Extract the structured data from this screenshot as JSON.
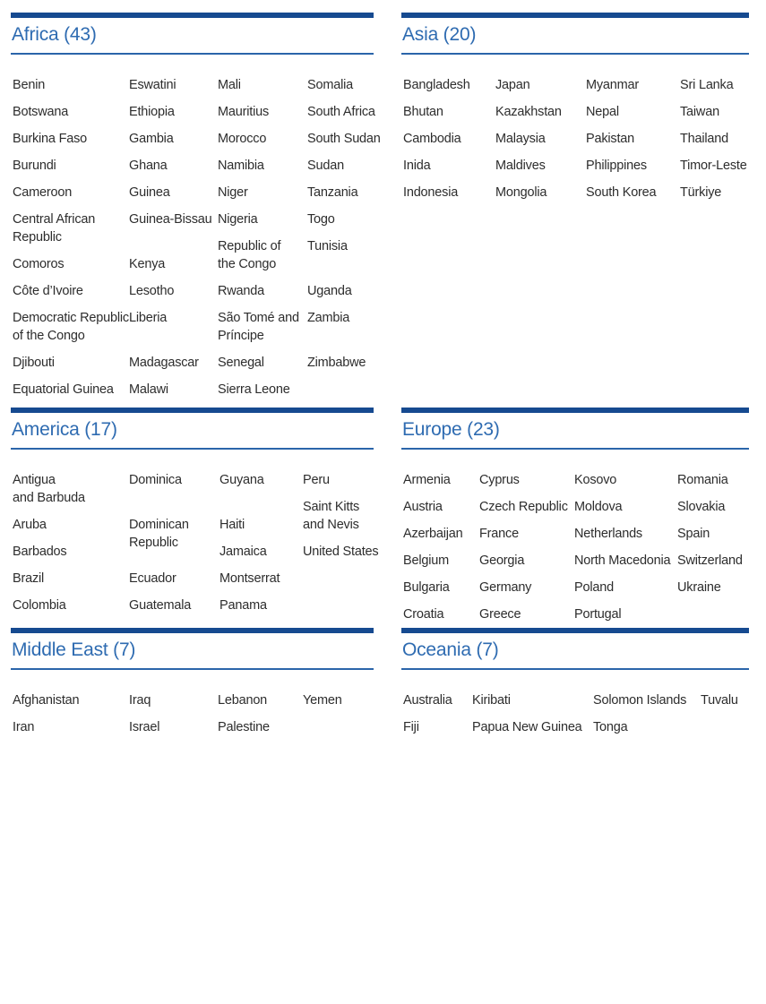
{
  "page": {
    "background": "#ffffff"
  },
  "colors": {
    "section_top_border": "#164a90",
    "section_rule": "#2b65aa",
    "heading_text": "#2e6bb1",
    "country_text": "#2d2d2d"
  },
  "sections": [
    {
      "id": "africa",
      "title": "Africa (43)",
      "columns": [
        [
          "Benin",
          "Botswana",
          "Burkina Faso",
          "Burundi",
          "Cameroon",
          "Central African\nRepublic",
          "Comoros",
          "Côte d’Ivoire",
          "Democratic Republic\nof the Congo",
          "Djibouti",
          "Equatorial Guinea"
        ],
        [
          "Eswatini",
          "Ethiopia",
          "Gambia",
          "Ghana",
          "Guinea",
          "Guinea-Bissau",
          "Kenya",
          "Lesotho",
          "Liberia",
          "Madagascar",
          "Malawi"
        ],
        [
          "Mali",
          "Mauritius",
          "Morocco",
          "Namibia",
          "Niger",
          "Nigeria",
          "Republic of\nthe Congo",
          "Rwanda",
          "São Tomé and\nPríncipe",
          "Senegal",
          "Sierra Leone"
        ],
        [
          "Somalia",
          "South Africa",
          "South Sudan",
          "Sudan",
          "Tanzania",
          "Togo",
          "Tunisia",
          "Uganda",
          "Zambia",
          "Zimbabwe"
        ]
      ]
    },
    {
      "id": "asia",
      "title": "Asia (20)",
      "columns": [
        [
          "Bangladesh",
          "Bhutan",
          "Cambodia",
          "Inida",
          "Indonesia"
        ],
        [
          "Japan",
          "Kazakhstan",
          "Malaysia",
          "Maldives",
          "Mongolia"
        ],
        [
          "Myanmar",
          "Nepal",
          "Pakistan",
          "Philippines",
          "South Korea"
        ],
        [
          "Sri Lanka",
          "Taiwan",
          "Thailand",
          "Timor-Leste",
          "Türkiye"
        ]
      ]
    },
    {
      "id": "america",
      "title": "America (17)",
      "columns": [
        [
          "Antigua\nand Barbuda",
          "Aruba",
          "Barbados",
          "Brazil",
          "Colombia"
        ],
        [
          "Dominica",
          "Dominican\nRepublic",
          "Ecuador",
          "Guatemala"
        ],
        [
          "Guyana",
          "Haiti",
          "Jamaica",
          "Montserrat",
          "Panama"
        ],
        [
          "Peru",
          "Saint Kitts\nand Nevis",
          "United States"
        ]
      ]
    },
    {
      "id": "europe",
      "title": "Europe (23)",
      "columns": [
        [
          "Armenia",
          "Austria",
          "Azerbaijan",
          "Belgium",
          "Bulgaria",
          "Croatia"
        ],
        [
          "Cyprus",
          "Czech Republic",
          "France",
          "Georgia",
          "Germany",
          "Greece"
        ],
        [
          "Kosovo",
          "Moldova",
          "Netherlands",
          "North Macedonia",
          "Poland",
          "Portugal"
        ],
        [
          "Romania",
          "Slovakia",
          "Spain",
          "Switzerland",
          "Ukraine"
        ]
      ]
    },
    {
      "id": "middle_east",
      "title": "Middle East (7)",
      "columns": [
        [
          "Afghanistan",
          "Iran"
        ],
        [
          "Iraq",
          "Israel"
        ],
        [
          "Lebanon",
          "Palestine"
        ],
        [
          "Yemen"
        ]
      ]
    },
    {
      "id": "oceania",
      "title": "Oceania (7)",
      "columns": [
        [
          "Australia",
          "Fiji"
        ],
        [
          "Kiribati",
          "Papua New Guinea"
        ],
        [
          "Solomon Islands",
          "Tonga"
        ],
        [
          "Tuvalu"
        ]
      ]
    }
  ]
}
